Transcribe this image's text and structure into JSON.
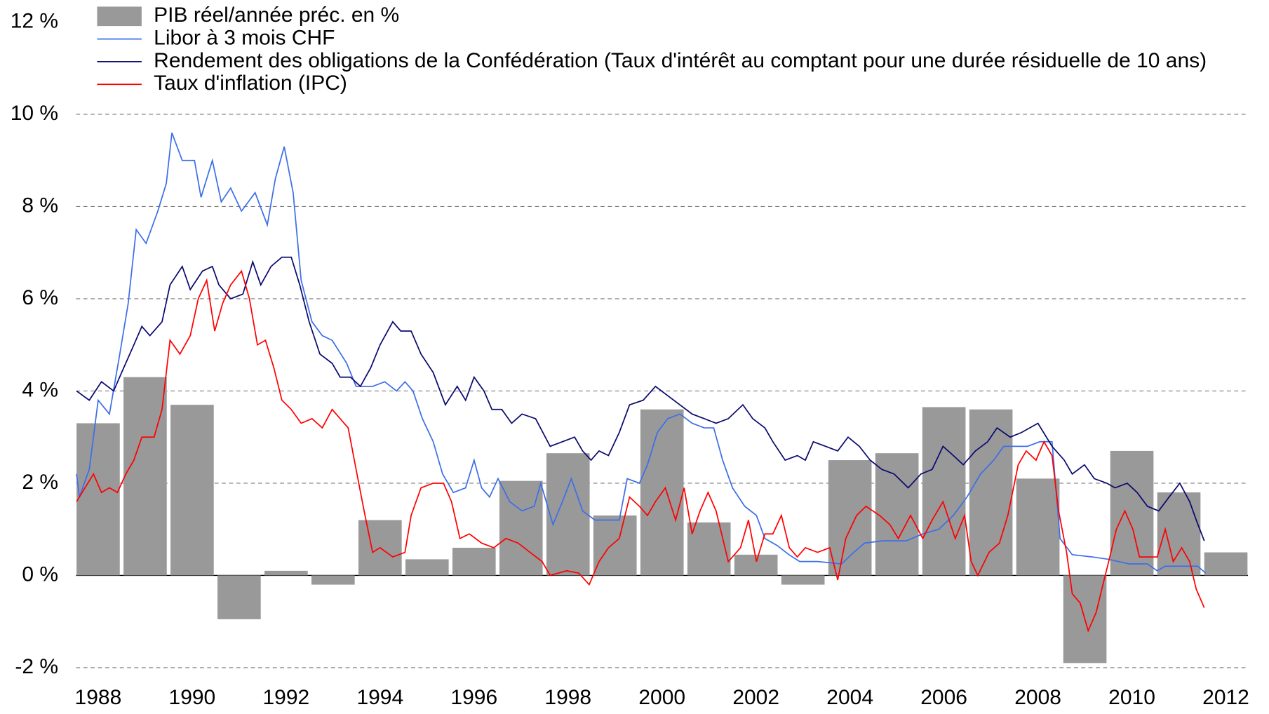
{
  "chart_data": {
    "type": "combo",
    "xlim": [
      1987.53,
      2012.47
    ],
    "xticks": [
      1988,
      1990,
      1992,
      1994,
      1996,
      1998,
      2000,
      2002,
      2004,
      2006,
      2008,
      2010,
      2012
    ],
    "ylim": [
      -2.3,
      12.3
    ],
    "yticks": [
      {
        "value": -2,
        "label": "-2 %"
      },
      {
        "value": 0,
        "label": "0 %"
      },
      {
        "value": 2,
        "label": "2 %"
      },
      {
        "value": 4,
        "label": "4 %"
      },
      {
        "value": 6,
        "label": "6 %"
      },
      {
        "value": 8,
        "label": "8 %"
      },
      {
        "value": 10,
        "label": "10 %"
      },
      {
        "value": 12,
        "label": "12 %"
      }
    ],
    "grid": true,
    "legend": "top-left",
    "series": [
      {
        "name": "PIB réel/année préc. en %",
        "type": "bar",
        "color": "#999999",
        "x": [
          1988,
          1989,
          1990,
          1991,
          1992,
          1993,
          1994,
          1995,
          1996,
          1997,
          1998,
          1999,
          2000,
          2001,
          2002,
          2003,
          2004,
          2005,
          2006,
          2007,
          2008,
          2009,
          2010,
          2011,
          2012
        ],
        "values": [
          3.3,
          4.3,
          3.7,
          -0.95,
          0.1,
          -0.2,
          1.2,
          0.35,
          0.6,
          2.05,
          2.65,
          1.3,
          3.6,
          1.15,
          0.45,
          -0.2,
          2.5,
          2.65,
          3.65,
          3.6,
          2.1,
          -1.9,
          2.7,
          1.8,
          0.5
        ]
      },
      {
        "name": "Libor à 3 mois CHF",
        "type": "line",
        "color": "#3d6fe8",
        "x": [
          1987.54,
          1987.6,
          1987.81,
          1988.0,
          1988.24,
          1988.46,
          1988.64,
          1988.81,
          1989.02,
          1989.27,
          1989.45,
          1989.57,
          1989.79,
          1990.05,
          1990.19,
          1990.43,
          1990.62,
          1990.82,
          1991.05,
          1991.34,
          1991.6,
          1991.77,
          1991.96,
          1992.15,
          1992.32,
          1992.55,
          1992.77,
          1992.98,
          1993.29,
          1993.49,
          1993.84,
          1994.1,
          1994.35,
          1994.53,
          1994.7,
          1994.9,
          1995.13,
          1995.33,
          1995.56,
          1995.82,
          1996.0,
          1996.16,
          1996.33,
          1996.51,
          1996.76,
          1997.02,
          1997.28,
          1997.42,
          1997.68,
          1997.88,
          1998.07,
          1998.31,
          1998.57,
          1998.83,
          1999.09,
          1999.26,
          1999.52,
          1999.69,
          1999.9,
          2000.12,
          2000.38,
          2000.64,
          2000.9,
          2001.1,
          2001.29,
          2001.5,
          2001.76,
          2002.01,
          2002.19,
          2002.45,
          2002.7,
          2002.93,
          2003.31,
          2003.82,
          2004.08,
          2004.31,
          2004.69,
          2005.2,
          2005.55,
          2005.89,
          2006.2,
          2006.49,
          2006.78,
          2007.06,
          2007.27,
          2007.54,
          2007.78,
          2008.04,
          2008.3,
          2008.47,
          2008.73,
          2009.16,
          2009.5,
          2009.94,
          2010.33,
          2010.54,
          2010.71,
          2011.06,
          2011.4,
          2011.57
        ],
        "values": [
          2.2,
          1.7,
          2.3,
          3.8,
          3.5,
          4.8,
          5.9,
          7.5,
          7.2,
          7.9,
          8.5,
          9.6,
          9.0,
          9.0,
          8.2,
          9.0,
          8.1,
          8.4,
          7.9,
          8.3,
          7.6,
          8.6,
          9.3,
          8.3,
          6.4,
          5.5,
          5.2,
          5.1,
          4.6,
          4.1,
          4.1,
          4.2,
          4.0,
          4.2,
          4.0,
          3.4,
          2.9,
          2.2,
          1.8,
          1.9,
          2.5,
          1.9,
          1.7,
          2.1,
          1.6,
          1.4,
          1.5,
          2.0,
          1.1,
          1.6,
          2.1,
          1.4,
          1.2,
          1.2,
          1.2,
          2.1,
          2.0,
          2.4,
          3.1,
          3.4,
          3.5,
          3.3,
          3.2,
          3.2,
          2.5,
          1.9,
          1.5,
          1.3,
          0.8,
          0.65,
          0.45,
          0.3,
          0.3,
          0.25,
          0.5,
          0.7,
          0.75,
          0.75,
          0.9,
          1.0,
          1.3,
          1.7,
          2.2,
          2.5,
          2.8,
          2.8,
          2.8,
          2.9,
          2.9,
          0.8,
          0.45,
          0.4,
          0.35,
          0.25,
          0.25,
          0.1,
          0.2,
          0.2,
          0.2,
          0.05
        ]
      },
      {
        "name": "Rendement des obligations de la Confédération (Taux d'intérêt au comptant pour une durée résiduelle de 10 ans)",
        "type": "line",
        "color": "#0a0a6e",
        "x": [
          1987.54,
          1987.81,
          1988.07,
          1988.33,
          1988.5,
          1988.76,
          1988.93,
          1989.1,
          1989.36,
          1989.53,
          1989.79,
          1989.96,
          1990.22,
          1990.43,
          1990.57,
          1990.82,
          1991.08,
          1991.29,
          1991.46,
          1991.68,
          1991.91,
          1992.11,
          1992.29,
          1992.49,
          1992.72,
          1992.98,
          1993.15,
          1993.37,
          1993.58,
          1993.8,
          1994.0,
          1994.27,
          1994.44,
          1994.66,
          1994.87,
          1995.13,
          1995.39,
          1995.64,
          1995.82,
          1996.0,
          1996.21,
          1996.38,
          1996.59,
          1996.8,
          1997.02,
          1997.31,
          1997.62,
          1997.88,
          1998.14,
          1998.31,
          1998.49,
          1998.66,
          1998.86,
          1999.09,
          1999.31,
          1999.6,
          1999.86,
          2000.12,
          2000.38,
          2000.64,
          2000.9,
          2001.15,
          2001.41,
          2001.72,
          2001.93,
          2002.19,
          2002.36,
          2002.62,
          2002.88,
          2003.05,
          2003.22,
          2003.48,
          2003.74,
          2003.96,
          2004.2,
          2004.43,
          2004.68,
          2004.94,
          2005.24,
          2005.51,
          2005.75,
          2005.98,
          2006.2,
          2006.41,
          2006.67,
          2006.93,
          2007.13,
          2007.41,
          2007.65,
          2008.0,
          2008.3,
          2008.56,
          2008.73,
          2008.99,
          2009.2,
          2009.47,
          2009.64,
          2009.9,
          2010.11,
          2010.33,
          2010.57,
          2010.79,
          2011.02,
          2011.23,
          2011.37,
          2011.54
        ],
        "values": [
          4.0,
          3.8,
          4.2,
          4.0,
          4.4,
          5.0,
          5.4,
          5.2,
          5.5,
          6.3,
          6.7,
          6.2,
          6.6,
          6.7,
          6.3,
          6.0,
          6.1,
          6.8,
          6.3,
          6.7,
          6.9,
          6.9,
          6.3,
          5.5,
          4.8,
          4.6,
          4.3,
          4.3,
          4.1,
          4.5,
          5.0,
          5.5,
          5.3,
          5.3,
          4.8,
          4.4,
          3.7,
          4.1,
          3.8,
          4.3,
          4.0,
          3.6,
          3.6,
          3.3,
          3.5,
          3.4,
          2.8,
          2.9,
          3.0,
          2.7,
          2.5,
          2.7,
          2.6,
          3.1,
          3.7,
          3.8,
          4.1,
          3.9,
          3.7,
          3.5,
          3.4,
          3.3,
          3.4,
          3.7,
          3.4,
          3.2,
          2.9,
          2.5,
          2.6,
          2.5,
          2.9,
          2.8,
          2.7,
          3.0,
          2.8,
          2.5,
          2.3,
          2.2,
          1.9,
          2.2,
          2.3,
          2.8,
          2.6,
          2.4,
          2.7,
          2.9,
          3.2,
          3.0,
          3.1,
          3.3,
          2.8,
          2.5,
          2.2,
          2.4,
          2.1,
          2.0,
          1.9,
          2.0,
          1.8,
          1.5,
          1.4,
          1.7,
          2.0,
          1.6,
          1.2,
          0.75
        ]
      },
      {
        "name": "Taux d'inflation (IPC)",
        "type": "line",
        "color": "#ff0000",
        "x": [
          1987.54,
          1987.72,
          1987.9,
          1988.07,
          1988.24,
          1988.41,
          1988.59,
          1988.76,
          1988.93,
          1989.19,
          1989.36,
          1989.53,
          1989.74,
          1989.96,
          1990.13,
          1990.31,
          1990.48,
          1990.65,
          1990.82,
          1991.05,
          1991.22,
          1991.39,
          1991.56,
          1991.74,
          1991.91,
          1992.11,
          1992.32,
          1992.55,
          1992.77,
          1992.98,
          1993.15,
          1993.32,
          1993.49,
          1993.66,
          1993.84,
          1994.0,
          1994.27,
          1994.53,
          1994.66,
          1994.87,
          1995.13,
          1995.35,
          1995.52,
          1995.7,
          1995.9,
          1996.16,
          1996.42,
          1996.68,
          1996.94,
          1997.19,
          1997.45,
          1997.62,
          1997.97,
          1998.23,
          1998.45,
          1998.66,
          1998.86,
          1999.09,
          1999.31,
          1999.52,
          1999.69,
          1999.86,
          2000.07,
          2000.29,
          2000.47,
          2000.64,
          2000.81,
          2000.98,
          2001.15,
          2001.41,
          2001.67,
          2001.84,
          2002.01,
          2002.19,
          2002.36,
          2002.54,
          2002.71,
          2002.88,
          2003.05,
          2003.31,
          2003.57,
          2003.74,
          2003.91,
          2004.14,
          2004.34,
          2004.63,
          2004.85,
          2005.03,
          2005.29,
          2005.55,
          2005.75,
          2005.98,
          2006.24,
          2006.44,
          2006.58,
          2006.72,
          2006.96,
          2007.18,
          2007.36,
          2007.58,
          2007.75,
          2007.96,
          2008.13,
          2008.3,
          2008.44,
          2008.61,
          2008.73,
          2008.9,
          2009.07,
          2009.24,
          2009.36,
          2009.53,
          2009.67,
          2009.85,
          2010.02,
          2010.16,
          2010.37,
          2010.54,
          2010.71,
          2010.88,
          2011.06,
          2011.23,
          2011.37,
          2011.54
        ],
        "values": [
          1.6,
          1.9,
          2.2,
          1.8,
          1.9,
          1.8,
          2.2,
          2.5,
          3.0,
          3.0,
          3.6,
          5.1,
          4.8,
          5.2,
          6.0,
          6.4,
          5.3,
          5.9,
          6.3,
          6.6,
          6.0,
          5.0,
          5.1,
          4.5,
          3.8,
          3.6,
          3.3,
          3.4,
          3.2,
          3.6,
          3.4,
          3.2,
          2.3,
          1.4,
          0.5,
          0.6,
          0.4,
          0.5,
          1.3,
          1.9,
          2.0,
          2.0,
          1.6,
          0.8,
          0.9,
          0.7,
          0.6,
          0.8,
          0.7,
          0.5,
          0.3,
          0.0,
          0.1,
          0.05,
          -0.2,
          0.3,
          0.6,
          0.8,
          1.7,
          1.5,
          1.3,
          1.6,
          1.9,
          1.2,
          1.9,
          0.9,
          1.4,
          1.8,
          1.4,
          0.3,
          0.6,
          1.2,
          0.3,
          0.9,
          0.9,
          1.3,
          0.6,
          0.4,
          0.6,
          0.5,
          0.6,
          -0.1,
          0.8,
          1.3,
          1.5,
          1.3,
          1.1,
          0.8,
          1.3,
          0.8,
          1.2,
          1.6,
          0.8,
          1.3,
          0.3,
          0.0,
          0.5,
          0.7,
          1.3,
          2.4,
          2.7,
          2.5,
          2.9,
          2.6,
          1.4,
          0.5,
          -0.4,
          -0.6,
          -1.2,
          -0.8,
          -0.3,
          0.4,
          1.0,
          1.4,
          1.0,
          0.4,
          0.4,
          0.4,
          1.0,
          0.3,
          0.6,
          0.3,
          -0.3,
          -0.7
        ]
      }
    ]
  }
}
